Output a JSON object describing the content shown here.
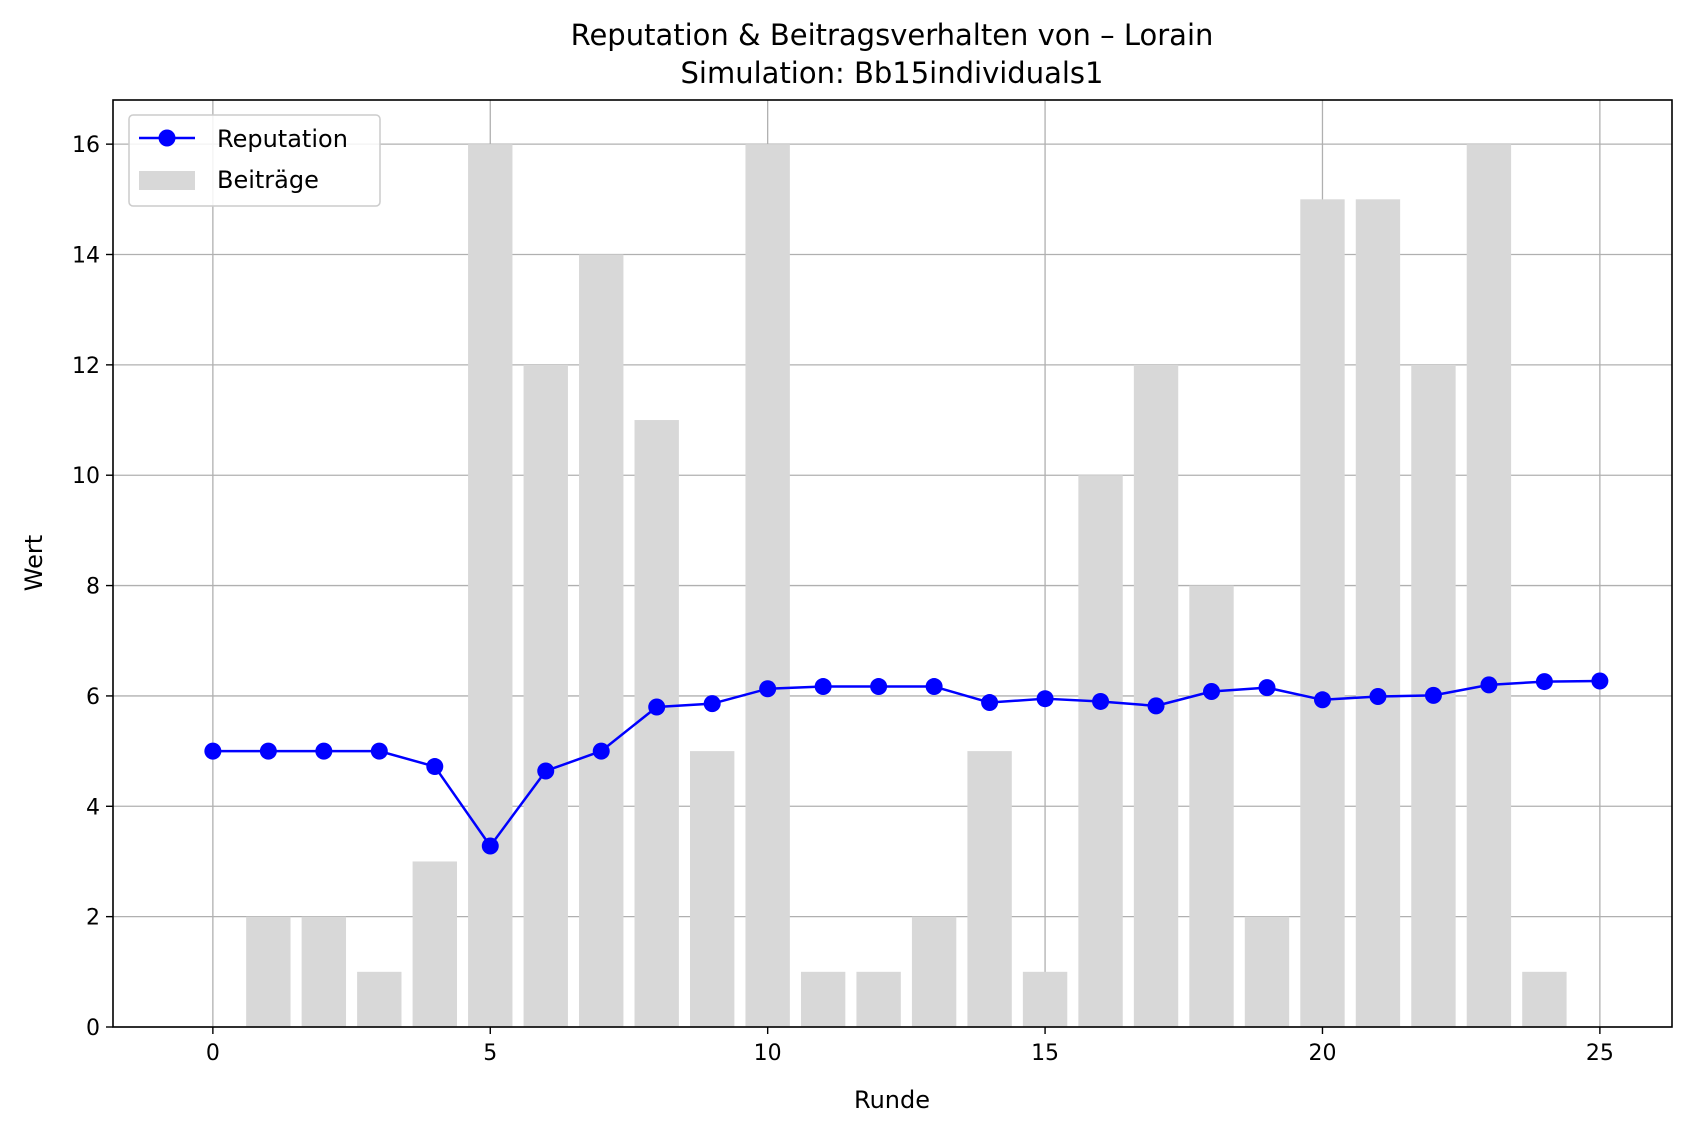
{
  "chart_data": {
    "type": "bar+line",
    "title": "Reputation & Beitragsverhalten von – Lorain",
    "subtitle": "Simulation: Bb15individuals1",
    "xlabel": "Runde",
    "ylabel": "Wert",
    "xlim": [
      -1.8,
      26.3
    ],
    "ylim": [
      0,
      16.8
    ],
    "xticks": [
      0,
      5,
      10,
      15,
      20,
      25
    ],
    "yticks": [
      0,
      2,
      4,
      6,
      8,
      10,
      12,
      14,
      16
    ],
    "grid": true,
    "legend_position": "top-left",
    "series": [
      {
        "name": "Reputation",
        "kind": "line",
        "color": "#0000ff",
        "x": [
          0,
          1,
          2,
          3,
          4,
          5,
          6,
          7,
          8,
          9,
          10,
          11,
          12,
          13,
          14,
          15,
          16,
          17,
          18,
          19,
          20,
          21,
          22,
          23,
          24,
          25
        ],
        "values": [
          5.0,
          5.0,
          5.0,
          5.0,
          4.72,
          3.28,
          4.64,
          5.0,
          5.8,
          5.86,
          6.13,
          6.17,
          6.17,
          6.17,
          5.88,
          5.95,
          5.9,
          5.82,
          6.08,
          6.15,
          5.93,
          5.99,
          6.01,
          6.2,
          6.26,
          6.27
        ]
      },
      {
        "name": "Beiträge",
        "kind": "bar",
        "color": "#d8d8d8",
        "x": [
          1,
          2,
          3,
          4,
          5,
          6,
          7,
          8,
          9,
          10,
          11,
          12,
          13,
          14,
          15,
          16,
          17,
          18,
          19,
          20,
          21,
          22,
          23,
          24
        ],
        "values": [
          2,
          2,
          1,
          3,
          16,
          12,
          14,
          11,
          5,
          16,
          1,
          1,
          2,
          5,
          1,
          10,
          12,
          8,
          2,
          15,
          15,
          12,
          16,
          1
        ]
      }
    ]
  }
}
